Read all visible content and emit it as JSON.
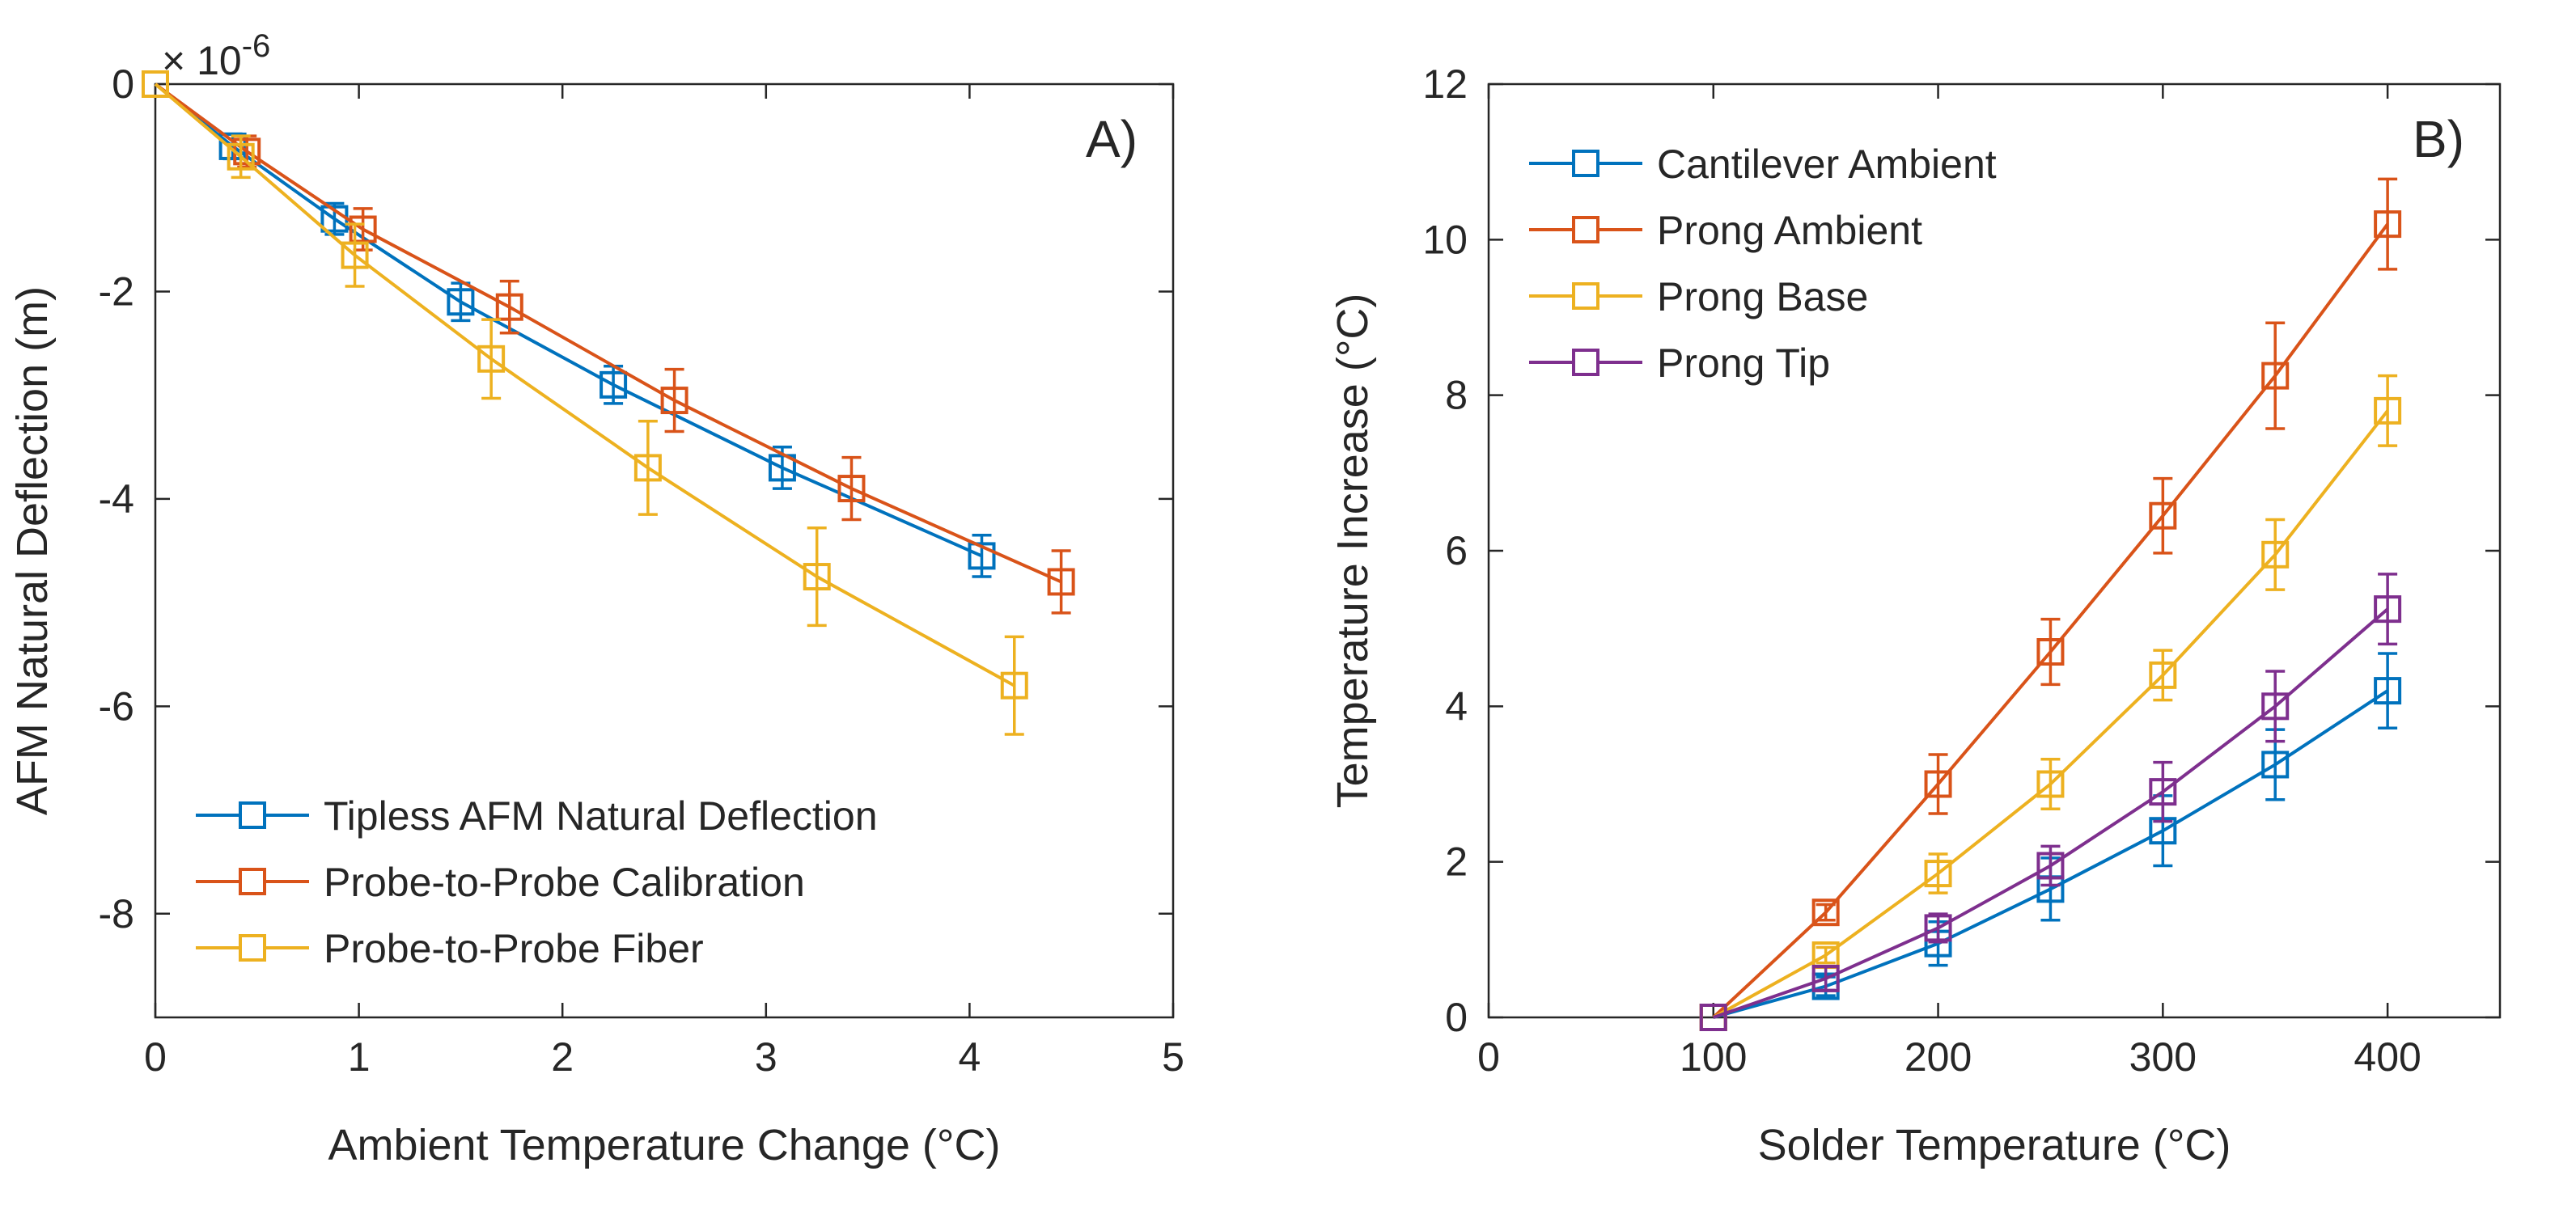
{
  "chart_data": [
    {
      "type": "line",
      "panel_label": "A)",
      "xlabel": "Ambient Temperature Change (°C)",
      "ylabel": "AFM Natural Deflection (m)",
      "exponent_label": "× 10",
      "exponent_power": "-6",
      "xlim": [
        0,
        5
      ],
      "ylim": [
        -9,
        0
      ],
      "xticks": [
        "0",
        "1",
        "2",
        "3",
        "4",
        "5"
      ],
      "yticks": [
        "0",
        "-2",
        "-4",
        "-6",
        "-8"
      ],
      "legend_position": "bottom-left",
      "series": [
        {
          "name": "Tipless AFM Natural Deflection",
          "color": "#0072BD",
          "x": [
            0,
            0.38,
            0.88,
            1.5,
            2.25,
            3.08,
            4.06
          ],
          "y": [
            0,
            -0.6,
            -1.3,
            -2.1,
            -2.9,
            -3.7,
            -4.55
          ],
          "err": [
            0,
            0.12,
            0.15,
            0.18,
            0.18,
            0.2,
            0.2
          ]
        },
        {
          "name": "Probe-to-Probe Calibration",
          "color": "#D95319",
          "x": [
            0,
            0.45,
            1.02,
            1.74,
            2.55,
            3.42,
            4.45
          ],
          "y": [
            0,
            -0.65,
            -1.4,
            -2.15,
            -3.05,
            -3.9,
            -4.8
          ],
          "err": [
            0,
            0.15,
            0.2,
            0.25,
            0.3,
            0.3,
            0.3
          ]
        },
        {
          "name": "Probe-to-Probe Fiber",
          "color": "#EDB120",
          "x": [
            0,
            0.42,
            0.98,
            1.65,
            2.42,
            3.25,
            4.22
          ],
          "y": [
            0,
            -0.7,
            -1.65,
            -2.65,
            -3.7,
            -4.75,
            -5.8
          ],
          "err": [
            0,
            0.2,
            0.3,
            0.38,
            0.45,
            0.47,
            0.47
          ]
        }
      ]
    },
    {
      "type": "line",
      "panel_label": "B)",
      "xlabel": "Solder Temperature (°C)",
      "ylabel": "Temperature Increase (°C)",
      "xlim": [
        0,
        450
      ],
      "ylim": [
        0,
        12
      ],
      "xticks": [
        "0",
        "100",
        "200",
        "300",
        "400"
      ],
      "yticks": [
        "0",
        "2",
        "4",
        "6",
        "8",
        "10",
        "12"
      ],
      "legend_position": "top-left",
      "series": [
        {
          "name": "Cantilever Ambient",
          "color": "#0072BD",
          "x": [
            100,
            150,
            200,
            250,
            300,
            350,
            400
          ],
          "y": [
            0,
            0.4,
            0.95,
            1.65,
            2.4,
            3.25,
            4.2
          ],
          "err": [
            0,
            0.12,
            0.28,
            0.4,
            0.45,
            0.45,
            0.48
          ]
        },
        {
          "name": "Prong Ambient",
          "color": "#D95319",
          "x": [
            100,
            150,
            200,
            250,
            300,
            350,
            400
          ],
          "y": [
            0,
            1.35,
            3.0,
            4.7,
            6.45,
            8.25,
            10.2
          ],
          "err": [
            0,
            0.1,
            0.38,
            0.42,
            0.48,
            0.68,
            0.58
          ]
        },
        {
          "name": "Prong Base",
          "color": "#EDB120",
          "x": [
            100,
            150,
            200,
            250,
            300,
            350,
            400
          ],
          "y": [
            0,
            0.8,
            1.85,
            3.0,
            4.4,
            5.95,
            7.8
          ],
          "err": [
            0,
            0.1,
            0.25,
            0.32,
            0.32,
            0.45,
            0.45
          ]
        },
        {
          "name": "Prong Tip",
          "color": "#7E2F8E",
          "x": [
            100,
            150,
            200,
            250,
            300,
            350,
            400
          ],
          "y": [
            0,
            0.5,
            1.15,
            1.95,
            2.9,
            4.0,
            5.25
          ],
          "err": [
            0,
            0.15,
            0.18,
            0.25,
            0.38,
            0.45,
            0.45
          ]
        }
      ]
    }
  ]
}
